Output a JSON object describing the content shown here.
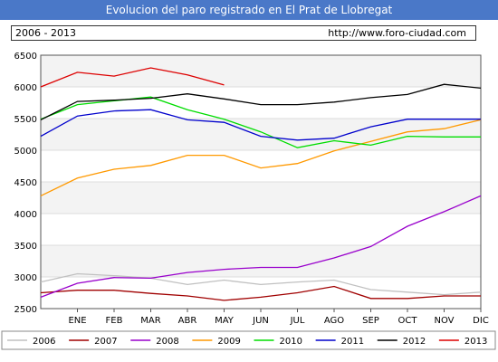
{
  "header": {
    "title": "Evolucion del paro registrado en El Prat de Llobregat",
    "range": "2006 - 2013",
    "url": "http://www.foro-ciudad.com"
  },
  "chart_data": {
    "type": "line",
    "title": "Evolucion del paro registrado en El Prat de Llobregat",
    "xlabel": "",
    "ylabel": "",
    "ylim": [
      2500,
      6500
    ],
    "yticks": [
      2500,
      3000,
      3500,
      4000,
      4500,
      5000,
      5500,
      6000,
      6500
    ],
    "categories": [
      "ENE",
      "FEB",
      "MAR",
      "ABR",
      "MAY",
      "JUN",
      "JUL",
      "AGO",
      "SEP",
      "OCT",
      "NOV",
      "DIC"
    ],
    "grid": "horizontal bands",
    "legend": "bottom",
    "series": [
      {
        "name": "2006",
        "color": "#c0c0c0",
        "start": 2920,
        "values": [
          3050,
          3020,
          2980,
          2880,
          2950,
          2880,
          2920,
          2950,
          2800,
          2760,
          2720,
          2760
        ]
      },
      {
        "name": "2007",
        "color": "#a00000",
        "start": 2750,
        "values": [
          2790,
          2790,
          2740,
          2700,
          2630,
          2680,
          2750,
          2850,
          2660,
          2660,
          2700,
          2700
        ]
      },
      {
        "name": "2008",
        "color": "#9900cc",
        "start": 2680,
        "values": [
          2900,
          2990,
          2980,
          3070,
          3120,
          3150,
          3150,
          3300,
          3480,
          3800,
          4030,
          4280
        ]
      },
      {
        "name": "2009",
        "color": "#ff9900",
        "start": 4280,
        "values": [
          4560,
          4700,
          4760,
          4920,
          4920,
          4720,
          4790,
          4990,
          5140,
          5290,
          5340,
          5480
        ]
      },
      {
        "name": "2010",
        "color": "#00dd00",
        "start": 5490,
        "values": [
          5720,
          5780,
          5840,
          5640,
          5490,
          5290,
          5040,
          5150,
          5080,
          5220,
          5210,
          5210
        ]
      },
      {
        "name": "2011",
        "color": "#0000cc",
        "start": 5220,
        "values": [
          5540,
          5620,
          5640,
          5480,
          5440,
          5220,
          5160,
          5190,
          5370,
          5490,
          5490,
          5490
        ]
      },
      {
        "name": "2012",
        "color": "#000000",
        "start": 5480,
        "values": [
          5770,
          5790,
          5820,
          5890,
          5810,
          5720,
          5720,
          5760,
          5830,
          5880,
          6040,
          5980
        ]
      },
      {
        "name": "2013",
        "color": "#dd0000",
        "start": 6000,
        "values": [
          6230,
          6170,
          6300,
          6190,
          6030,
          null,
          null,
          null,
          null,
          null,
          null,
          null
        ]
      }
    ]
  }
}
